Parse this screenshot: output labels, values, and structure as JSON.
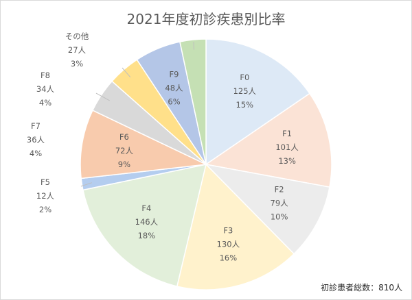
{
  "chart_data": {
    "type": "pie",
    "title": "2021年度初診疾患別比率",
    "unit": "人",
    "total_label": "初診患者総数：810人",
    "slices": [
      {
        "name": "F0",
        "value": 125,
        "count_label": "125人",
        "percent_label": "15%",
        "color": "#dde9f6"
      },
      {
        "name": "F1",
        "value": 101,
        "count_label": "101人",
        "percent_label": "13%",
        "color": "#fbe3d6"
      },
      {
        "name": "F2",
        "value": 79,
        "count_label": "79人",
        "percent_label": "10%",
        "color": "#ececec"
      },
      {
        "name": "F3",
        "value": 130,
        "count_label": "130人",
        "percent_label": "16%",
        "color": "#fff2cc"
      },
      {
        "name": "F4",
        "value": 146,
        "count_label": "146人",
        "percent_label": "18%",
        "color": "#e2efda"
      },
      {
        "name": "F5",
        "value": 12,
        "count_label": "12人",
        "percent_label": "2%",
        "color": "#b4cdef"
      },
      {
        "name": "F6",
        "value": 72,
        "count_label": "72人",
        "percent_label": "9%",
        "color": "#f8cbad"
      },
      {
        "name": "F7",
        "value": 36,
        "count_label": "36人",
        "percent_label": "4%",
        "color": "#d9d9d9"
      },
      {
        "name": "F8",
        "value": 34,
        "count_label": "34人",
        "percent_label": "4%",
        "color": "#ffe08a"
      },
      {
        "name": "F9",
        "value": 48,
        "count_label": "48人",
        "percent_label": "6%",
        "color": "#b4c6e7"
      },
      {
        "name": "その他",
        "value": 27,
        "count_label": "27人",
        "percent_label": "3%",
        "color": "#c5e0b4"
      }
    ]
  }
}
